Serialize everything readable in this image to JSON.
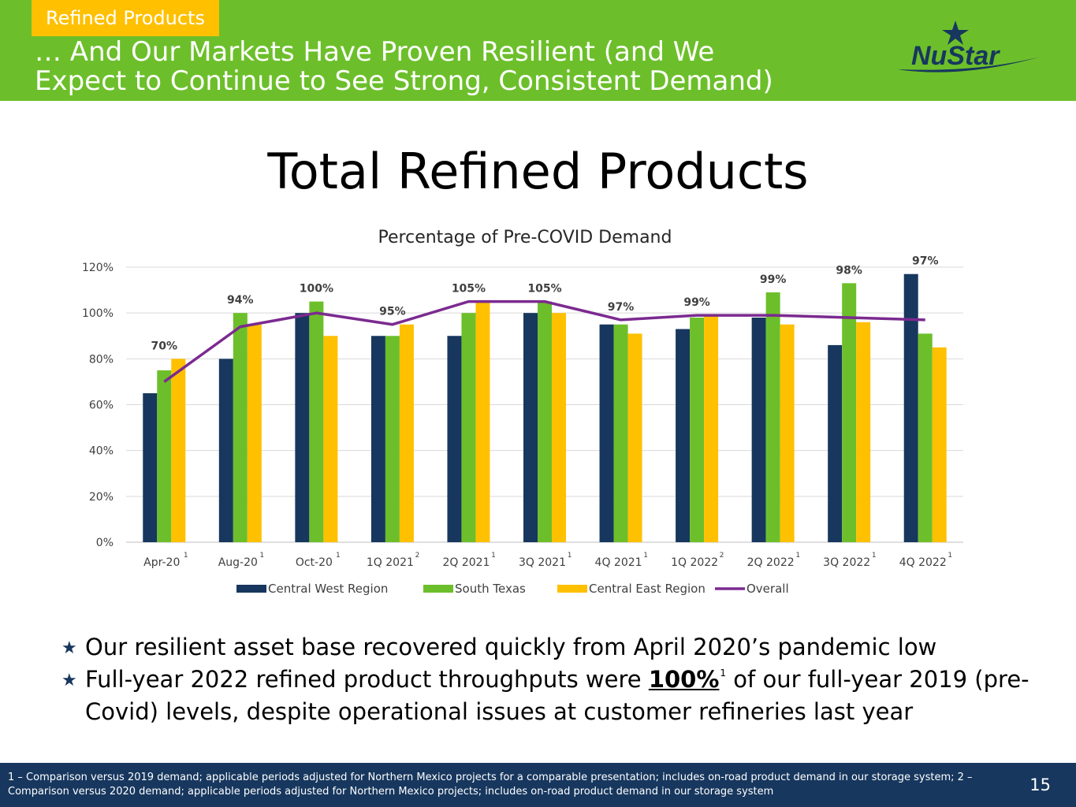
{
  "header": {
    "section_tag": "Refined Products",
    "title_line1": "… And Our Markets Have Proven Resilient (and We",
    "title_line2": "Expect to Continue to See Strong, Consistent Demand)",
    "logo_text": "NuStar"
  },
  "page_title": "Total Refined Products",
  "colors": {
    "header_green": "#6cbf2a",
    "tag_yellow": "#ffc000",
    "navy": "#17375e",
    "central_west": "#17375e",
    "south_texas": "#6cbf2a",
    "central_east": "#ffc000",
    "overall": "#7b2a90"
  },
  "chart_data": {
    "type": "bar",
    "title": "Percentage of Pre-COVID Demand",
    "categories": [
      "Apr-20",
      "Aug-20",
      "Oct-20",
      "1Q 2021",
      "2Q 2021",
      "3Q 2021",
      "4Q 2021",
      "1Q 2022",
      "2Q 2022",
      "3Q 2022",
      "4Q 2022"
    ],
    "category_notes": [
      "1",
      "1",
      "1",
      "2",
      "1",
      "1",
      "1",
      "2",
      "1",
      "1",
      "1"
    ],
    "series": [
      {
        "name": "Central West Region",
        "type": "bar",
        "color": "#17375e",
        "values": [
          65,
          80,
          100,
          90,
          90,
          100,
          95,
          93,
          98,
          86,
          117
        ]
      },
      {
        "name": "South Texas",
        "type": "bar",
        "color": "#6cbf2a",
        "values": [
          75,
          100,
          105,
          90,
          100,
          105,
          95,
          98,
          109,
          113,
          91
        ]
      },
      {
        "name": "Central East Region",
        "type": "bar",
        "color": "#ffc000",
        "values": [
          80,
          95,
          90,
          95,
          105,
          100,
          91,
          99,
          95,
          96,
          85
        ]
      },
      {
        "name": "Overall",
        "type": "line",
        "color": "#7b2a90",
        "values": [
          70,
          94,
          100,
          95,
          105,
          105,
          97,
          99,
          99,
          98,
          97
        ]
      }
    ],
    "data_labels": [
      "70%",
      "94%",
      "100%",
      "95%",
      "105%",
      "105%",
      "97%",
      "99%",
      "99%",
      "98%",
      "97%"
    ],
    "yticks": [
      "0%",
      "20%",
      "40%",
      "60%",
      "80%",
      "100%",
      "120%"
    ],
    "ylim": [
      0,
      120
    ],
    "grid": true,
    "legend": "bottom"
  },
  "bullets": {
    "b1": "Our resilient asset base recovered quickly from April 2020’s pandemic low",
    "b2_pre": "Full-year 2022 refined product throughputs were ",
    "b2_bold": "100%",
    "b2_sup": "1",
    "b2_post": " of our full-year 2019 (pre-Covid) levels, despite operational issues at customer refineries last year"
  },
  "footer": {
    "footnote": "1 – Comparison versus 2019 demand; applicable periods adjusted for Northern Mexico projects for a comparable presentation; includes on-road product demand in our storage system;  2 – Comparison versus 2020 demand; applicable periods adjusted for Northern Mexico projects; includes on-road product demand in our storage system",
    "page_number": "15"
  }
}
